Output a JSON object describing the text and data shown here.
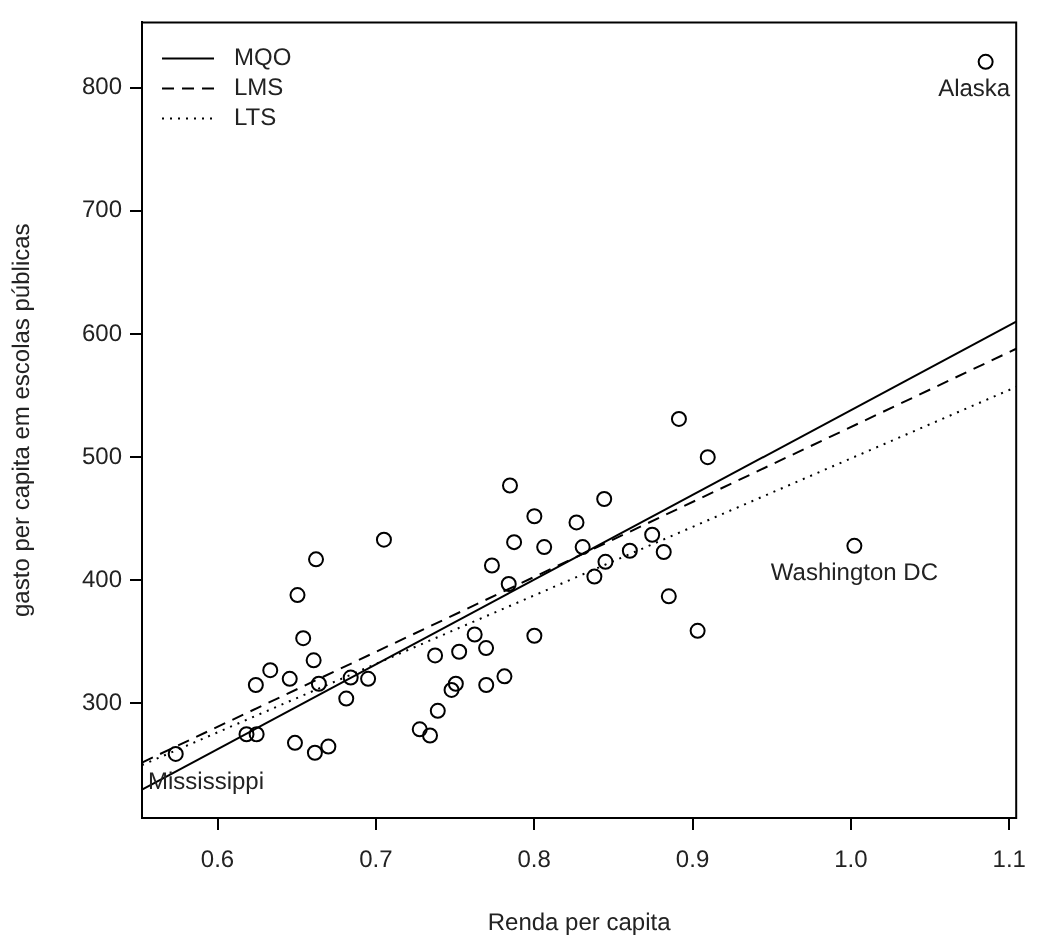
{
  "chart_data": {
    "type": "scatter",
    "xlabel": "Renda per capita",
    "ylabel": "gasto per capita em escolas públicas",
    "xlim": [
      0.5523,
      1.1044
    ],
    "xticks": [
      0.6,
      0.7,
      0.8,
      0.9,
      {
        "value": 1.0,
        "label": "1.0"
      },
      1.1
    ],
    "ylim": [
      207,
      853
    ],
    "yticks": [
      300,
      400,
      500,
      600,
      700,
      800
    ],
    "grid": false,
    "legend": "top left",
    "series": [
      {
        "type": "scatter",
        "color": "#000000",
        "marker": "circle",
        "x": [
          0.6247,
          1.0851,
          0.7374,
          0.6183,
          0.885,
          0.8001,
          0.8914,
          0.8604,
          0.7505,
          0.67,
          0.838,
          0.6813,
          0.8745,
          0.7696,
          0.7873,
          0.8001,
          0.6615,
          0.664,
          0.6333,
          0.8306,
          0.8063,
          0.8442,
          0.7847,
          0.5736,
          0.7342,
          0.7051,
          0.7391,
          0.9032,
          0.7277,
          0.8818,
          0.6505,
          0.8267,
          0.6607,
          0.7478,
          0.7812,
          0.6951,
          0.7839,
          0.7733,
          0.7526,
          0.6242,
          0.6841,
          0.6489,
          0.7697,
          0.6622,
          0.6541,
          0.7624,
          0.845,
          1.0022,
          0.6456,
          0.9096
        ],
        "values": [
          275,
          821,
          339,
          275,
          387,
          452,
          531,
          424,
          316,
          265,
          403,
          304,
          437,
          345,
          431,
          355,
          260,
          316,
          327,
          427,
          427,
          466,
          477,
          259,
          274,
          433,
          294,
          359,
          279,
          423,
          388,
          447,
          335,
          311,
          322,
          320,
          397,
          412,
          342,
          315,
          321,
          268,
          315,
          417,
          353,
          356,
          415,
          428,
          320,
          500
        ]
      },
      {
        "type": "line",
        "name": "MQO",
        "color": "#000000",
        "marker": "none",
        "line_style": "solid",
        "x": [
          0.5523,
          1.1044
        ],
        "values": [
          230,
          610
        ]
      },
      {
        "type": "line",
        "name": "LMS",
        "color": "#000000",
        "marker": "none",
        "line_style": "dashed",
        "x": [
          0.5523,
          1.1044
        ],
        "values": [
          252,
          588
        ]
      },
      {
        "type": "line",
        "name": "LTS",
        "color": "#000000",
        "marker": "none",
        "line_style": "dotted",
        "x": [
          0.5523,
          1.1044
        ],
        "values": [
          250,
          557
        ]
      }
    ],
    "annotations": [
      {
        "text": "Alaska",
        "x": 1.0851,
        "y": 821
      },
      {
        "text": "Washington DC",
        "x": 1.0022,
        "y": 428
      },
      {
        "text": "Mississippi",
        "x": 0.5736,
        "y": 259
      }
    ]
  }
}
